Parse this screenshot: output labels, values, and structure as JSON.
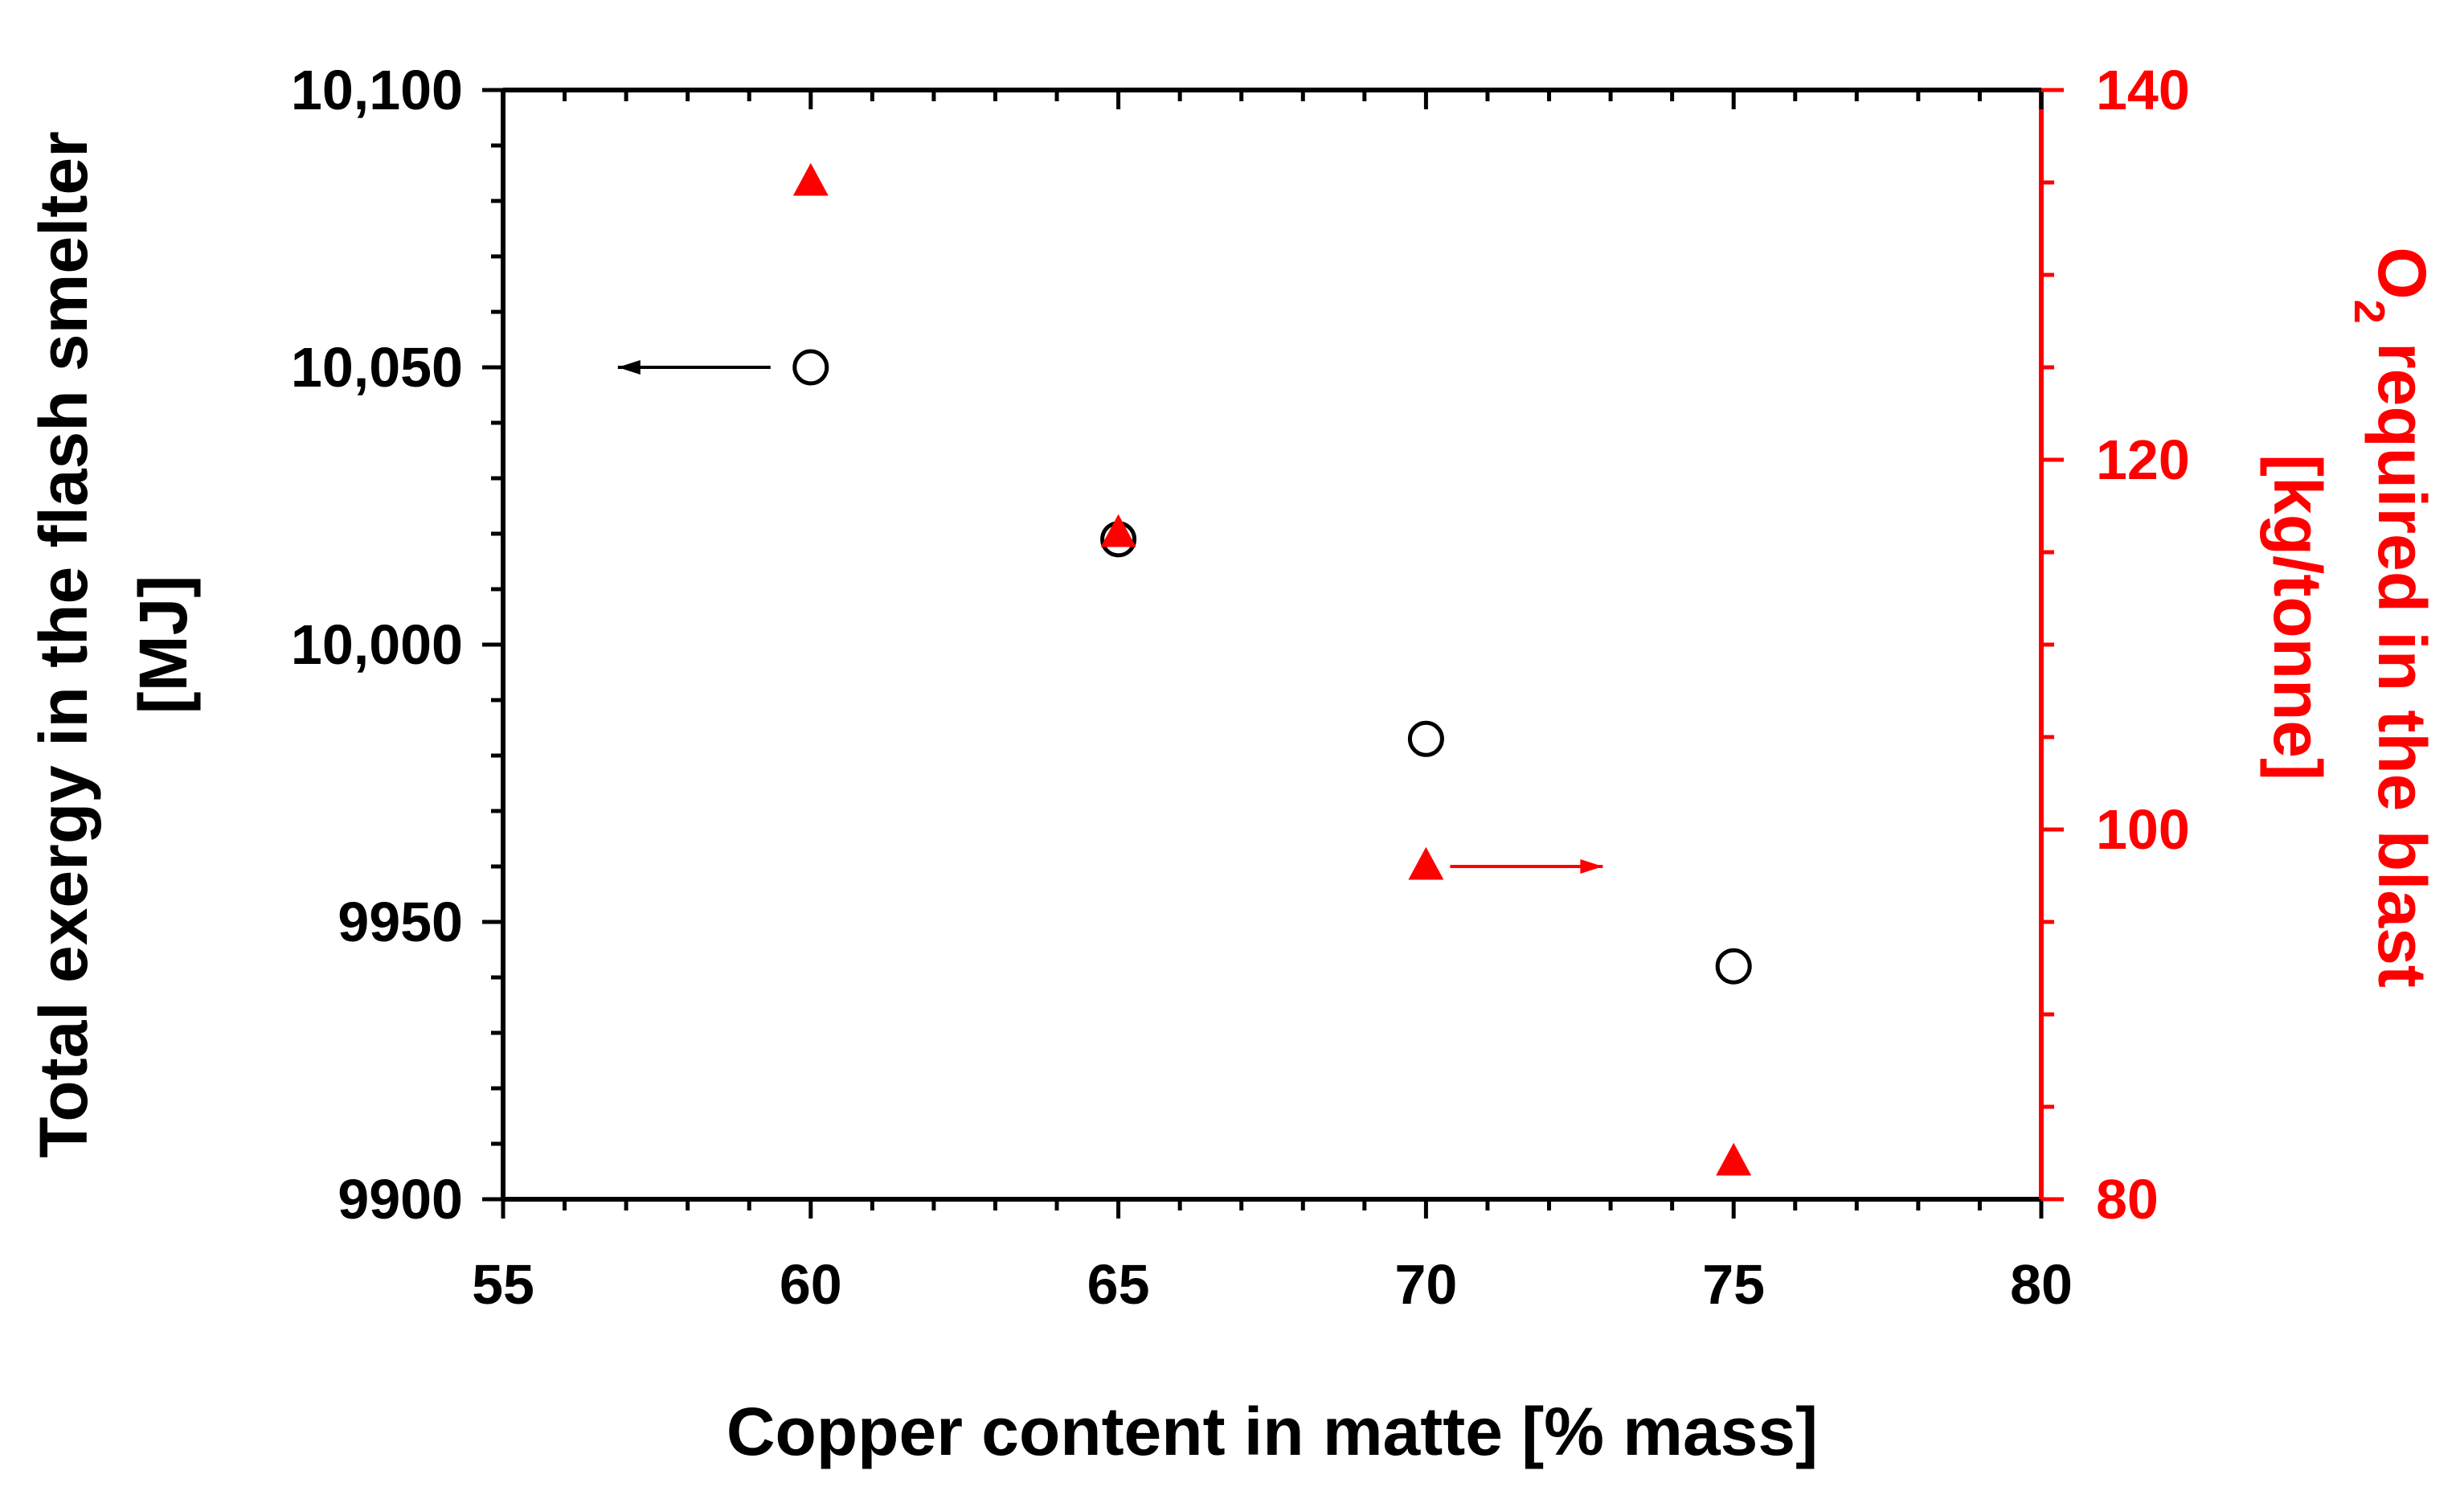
{
  "chart_data": {
    "type": "scatter",
    "xlabel": "Copper content in matte [% mass]",
    "ylabel_left": [
      "Total exergy in the flash smelter",
      "[MJ]"
    ],
    "ylabel_right": {
      "line1_prefix": "O",
      "line1_subscript": "2",
      "line1_suffix": " required in the blast",
      "line2": "[kg/tonne]"
    },
    "xlim": [
      55,
      80
    ],
    "ylim_left": [
      9900,
      10100
    ],
    "ylim_right": [
      80,
      140
    ],
    "x_ticks": [
      {
        "value": 55,
        "label": "55"
      },
      {
        "value": 60,
        "label": "60"
      },
      {
        "value": 65,
        "label": "65"
      },
      {
        "value": 70,
        "label": "70"
      },
      {
        "value": 75,
        "label": "75"
      },
      {
        "value": 80,
        "label": "80"
      }
    ],
    "y_left_ticks": [
      {
        "value": 9900,
        "label": "9900"
      },
      {
        "value": 9950,
        "label": "9950"
      },
      {
        "value": 10000,
        "label": "10,000"
      },
      {
        "value": 10050,
        "label": "10,050"
      },
      {
        "value": 10100,
        "label": "10,100"
      }
    ],
    "y_right_ticks": [
      {
        "value": 80,
        "label": "80"
      },
      {
        "value": 100,
        "label": "100"
      },
      {
        "value": 120,
        "label": "120"
      },
      {
        "value": 140,
        "label": "140"
      }
    ],
    "grid": false,
    "series": [
      {
        "axis": "left",
        "marker": "open-circle",
        "color": "#000000",
        "points": [
          {
            "x": 60,
            "y": 10050
          },
          {
            "x": 65,
            "y": 10019
          },
          {
            "x": 70,
            "y": 9983
          },
          {
            "x": 75,
            "y": 9942
          }
        ]
      },
      {
        "axis": "right",
        "marker": "filled-triangle",
        "color": "#ff0000",
        "points": [
          {
            "x": 60,
            "y": 135
          },
          {
            "x": 65,
            "y": 116
          },
          {
            "x": 70,
            "y": 98
          },
          {
            "x": 75,
            "y": 82
          }
        ]
      }
    ],
    "annotations": [
      {
        "type": "arrow",
        "direction": "left",
        "series": 0,
        "color": "#000000"
      },
      {
        "type": "arrow",
        "direction": "right",
        "series": 1,
        "color": "#ff0000"
      }
    ]
  }
}
